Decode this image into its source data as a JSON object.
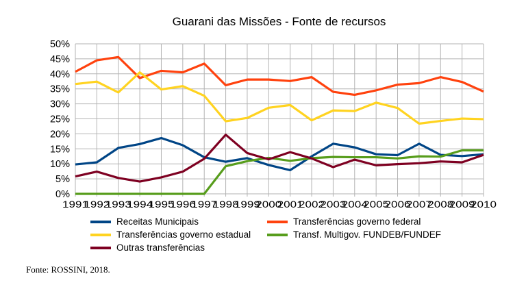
{
  "chart_data": {
    "type": "line",
    "title": "Guarani das Missões - Fonte de recursos",
    "xlabel": "",
    "ylabel": "",
    "categories": [
      "1991",
      "1992",
      "1993",
      "1994",
      "1995",
      "1996",
      "1997",
      "1998",
      "1999",
      "2000",
      "2001",
      "2002",
      "2003",
      "2004",
      "2005",
      "2006",
      "2007",
      "2008",
      "2009",
      "2010"
    ],
    "ylim": [
      0,
      50
    ],
    "yticks": [
      "0%",
      "5%",
      "10%",
      "15%",
      "20%",
      "25%",
      "30%",
      "35%",
      "40%",
      "45%",
      "50%"
    ],
    "grid": true,
    "legend_position": "bottom",
    "series": [
      {
        "name": "Receitas Municipais",
        "color": "#004586",
        "values": [
          9.8,
          10.5,
          15.3,
          16.6,
          18.6,
          16.2,
          12.2,
          10.7,
          11.9,
          9.6,
          7.9,
          12.5,
          16.7,
          15.5,
          13.2,
          12.9,
          16.7,
          13.0,
          12.6,
          13.2
        ]
      },
      {
        "name": "Transferências governo federal",
        "color": "#ff420e",
        "values": [
          40.7,
          44.5,
          45.6,
          38.6,
          41.0,
          40.5,
          43.4,
          36.2,
          38.1,
          38.1,
          37.6,
          38.9,
          34.0,
          33.0,
          34.5,
          36.4,
          36.9,
          38.9,
          37.3,
          34.1
        ]
      },
      {
        "name": "Transferências governo estadual",
        "color": "#ffd320",
        "values": [
          36.6,
          37.4,
          33.8,
          40.5,
          34.8,
          35.9,
          32.7,
          24.2,
          25.3,
          28.7,
          29.6,
          24.5,
          27.8,
          27.6,
          30.4,
          28.6,
          23.4,
          24.3,
          25.1,
          24.9
        ]
      },
      {
        "name": "Transf. Multigov. FUNDEB/FUNDEF",
        "color": "#579d1c",
        "values": [
          0,
          0,
          0,
          0,
          0,
          0,
          0,
          9.2,
          10.9,
          12.0,
          11.0,
          11.9,
          12.3,
          12.2,
          12.2,
          11.8,
          12.5,
          12.4,
          14.5,
          14.5
        ]
      },
      {
        "name": "Outras transferências",
        "color": "#7e0021",
        "values": [
          5.8,
          7.4,
          5.3,
          4.1,
          5.5,
          7.4,
          11.7,
          19.7,
          13.6,
          11.5,
          13.9,
          11.8,
          8.9,
          11.4,
          9.5,
          9.9,
          10.2,
          10.8,
          10.5,
          13.0
        ]
      }
    ]
  },
  "footer": "Fonte: ROSSINI, 2018."
}
